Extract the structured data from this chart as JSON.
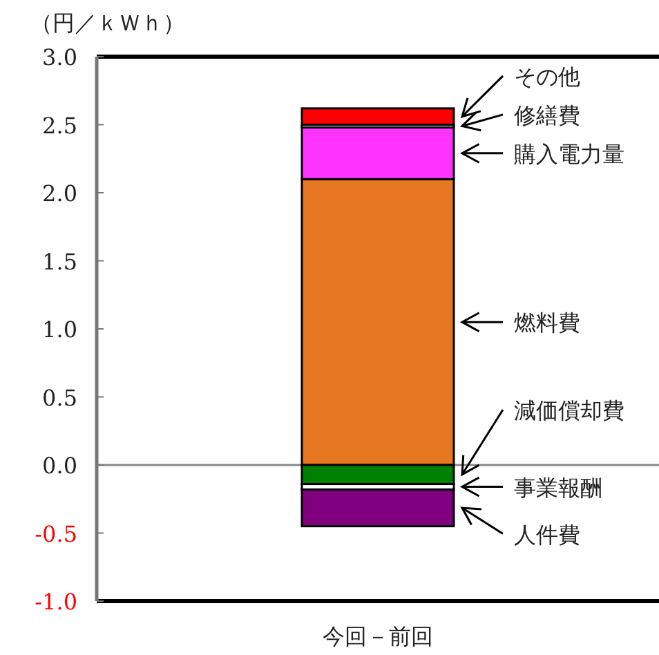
{
  "chart_data": {
    "type": "bar",
    "stacked": true,
    "legend": "right",
    "ylabel": "（円／ｋＷｈ）",
    "categories": [
      "今回－前回"
    ],
    "ylim": [
      -1,
      3
    ],
    "yticks": [
      {
        "value": -1,
        "label": "-1.0"
      },
      {
        "value": -0.5,
        "label": "-0.5"
      },
      {
        "value": 0,
        "label": "0.0"
      },
      {
        "value": 0.5,
        "label": "0.5"
      },
      {
        "value": 1,
        "label": "1.0"
      },
      {
        "value": 1.5,
        "label": "1.5"
      },
      {
        "value": 2,
        "label": "2.0"
      },
      {
        "value": 2.5,
        "label": "2.5"
      },
      {
        "value": 3,
        "label": "3.0"
      }
    ],
    "series": [
      {
        "name": "燃料費",
        "color": "#e87722",
        "values": [
          2.1
        ]
      },
      {
        "name": "購入電力量",
        "color": "#ff33ff",
        "values": [
          0.38
        ]
      },
      {
        "name": "修繕費",
        "color": "#ffffff",
        "values": [
          0.02
        ]
      },
      {
        "name": "その他",
        "color": "#ff0000",
        "values": [
          0.12
        ]
      },
      {
        "name": "減価償却費",
        "color": "#008000",
        "values": [
          -0.14
        ]
      },
      {
        "name": "事業報酬",
        "color": "#ffffff",
        "values": [
          -0.04
        ]
      },
      {
        "name": "人件費",
        "color": "#800080",
        "values": [
          -0.27
        ]
      }
    ]
  }
}
